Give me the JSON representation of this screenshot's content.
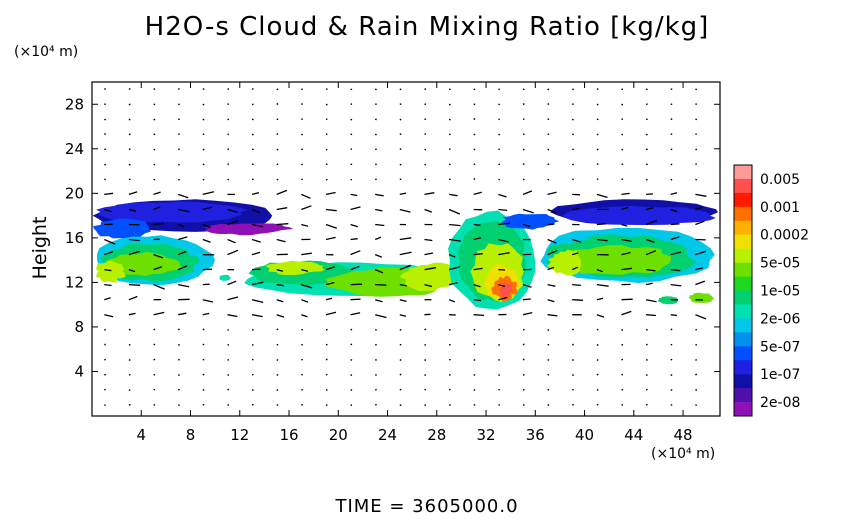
{
  "chart_data": {
    "type": "heatmap",
    "title": "H2O-s Cloud & Rain Mixing Ratio [kg/kg]",
    "ylabel": "Height",
    "x_unit": "(×10⁴ m)",
    "y_unit": "(×10⁴ m)",
    "x_ticks": [
      4,
      8,
      12,
      16,
      20,
      24,
      28,
      32,
      36,
      40,
      44,
      48
    ],
    "y_ticks": [
      4,
      8,
      12,
      16,
      20,
      24,
      28
    ],
    "xlim": [
      0,
      51
    ],
    "ylim": [
      0,
      30
    ],
    "footer": "TIME = 3605000.0",
    "colorbar": {
      "labels": [
        "0.005",
        "0.001",
        "0.0002",
        "5e-05",
        "1e-05",
        "2e-06",
        "5e-07",
        "1e-07",
        "2e-08"
      ],
      "colors": [
        "#ff9a9a",
        "#ff5050",
        "#ff1a00",
        "#ff7000",
        "#ffb000",
        "#f0e000",
        "#b8f000",
        "#6ee000",
        "#20d820",
        "#00d070",
        "#00e0b0",
        "#00c8e8",
        "#0090f0",
        "#0050ff",
        "#2020e0",
        "#1010a8",
        "#5010b0",
        "#9010b8"
      ]
    },
    "cloud_regions": [
      {
        "name": "upper-anvil-left",
        "x": [
          0,
          15
        ],
        "y": [
          16.5,
          19.5
        ],
        "level": "1e-07"
      },
      {
        "name": "mid-band-left",
        "x": [
          0,
          10
        ],
        "y": [
          11.5,
          16.5
        ],
        "level": "5e-05"
      },
      {
        "name": "lower-band-center",
        "x": [
          12,
          30
        ],
        "y": [
          10.5,
          14.5
        ],
        "level": "1e-05"
      },
      {
        "name": "convective-core",
        "x": [
          30,
          36
        ],
        "y": [
          9.5,
          18.5
        ],
        "level": "0.001"
      },
      {
        "name": "upper-anvil-right",
        "x": [
          37,
          51
        ],
        "y": [
          17,
          19.5
        ],
        "level": "1e-07"
      },
      {
        "name": "mid-band-right",
        "x": [
          36,
          51
        ],
        "y": [
          12,
          17
        ],
        "level": "5e-05"
      },
      {
        "name": "small-cells-right",
        "x": [
          46,
          51
        ],
        "y": [
          10,
          11
        ],
        "level": "1e-05"
      }
    ]
  }
}
